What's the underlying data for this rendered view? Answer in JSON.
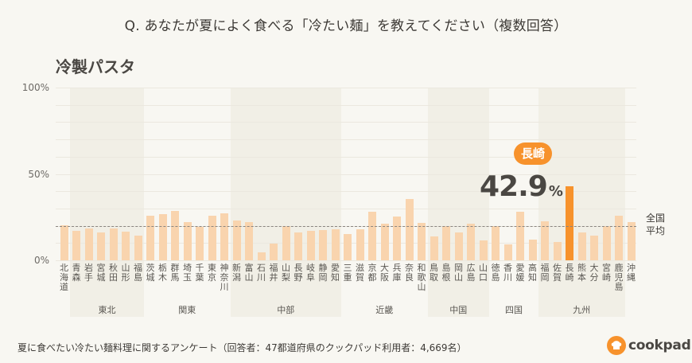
{
  "header": {
    "question": "Q. あなたが夏によく食べる「冷たい麺」を教えてください（複数回答）",
    "subtitle": "冷製パスタ"
  },
  "callout": {
    "prefecture": "長崎",
    "value": "42.9",
    "unit": "%"
  },
  "average": {
    "label_line1": "全国",
    "label_line2": "平均",
    "value": 20
  },
  "footer": {
    "note": "夏に食べたい冷たい麺料理に関するアンケート（回答者：47都道府県のクックパッド利用者：4,669名）",
    "logo_text": "cookpad",
    "logo_icon": "chef-hat-icon"
  },
  "colors": {
    "bar": "#f9d4ae",
    "highlight": "#f7922c",
    "background": "#f8f7f2",
    "region_band": "#f1efe6"
  },
  "regions": [
    {
      "name": "東北",
      "start": 1,
      "end": 6,
      "shaded": true
    },
    {
      "name": "関東",
      "start": 7,
      "end": 13,
      "shaded": false
    },
    {
      "name": "中部",
      "start": 14,
      "end": 22,
      "shaded": true
    },
    {
      "name": "近畿",
      "start": 23,
      "end": 29,
      "shaded": false
    },
    {
      "name": "中国",
      "start": 30,
      "end": 34,
      "shaded": true
    },
    {
      "name": "四国",
      "start": 35,
      "end": 38,
      "shaded": false
    },
    {
      "name": "九州",
      "start": 39,
      "end": 45,
      "shaded": true
    }
  ],
  "chart_data": {
    "type": "bar",
    "title": "冷製パスタ",
    "xlabel": "",
    "ylabel": "",
    "ylim": [
      0,
      100
    ],
    "yticks": [
      "0%",
      "50%",
      "100%"
    ],
    "grid": true,
    "reference_line": {
      "label": "全国平均",
      "value": 20
    },
    "highlight": {
      "category": "長崎",
      "value": 42.9
    },
    "categories": [
      "北海道",
      "青森",
      "岩手",
      "宮城",
      "秋田",
      "山形",
      "福島",
      "茨城",
      "栃木",
      "群馬",
      "埼玉",
      "千葉",
      "東京",
      "神奈川",
      "新潟",
      "富山",
      "石川",
      "福井",
      "山梨",
      "長野",
      "岐阜",
      "静岡",
      "愛知",
      "三重",
      "滋賀",
      "京都",
      "大阪",
      "兵庫",
      "奈良",
      "和歌山",
      "鳥取",
      "島根",
      "岡山",
      "広島",
      "山口",
      "徳島",
      "香川",
      "愛媛",
      "高知",
      "福岡",
      "佐賀",
      "長崎",
      "熊本",
      "大分",
      "宮崎",
      "鹿児島",
      "沖縄"
    ],
    "values": [
      20.5,
      17.0,
      18.3,
      15.9,
      18.3,
      16.5,
      14.4,
      26.0,
      26.7,
      28.7,
      22.0,
      19.3,
      26.0,
      27.2,
      23.0,
      22.3,
      4.6,
      9.8,
      19.6,
      15.9,
      17.0,
      17.4,
      18.0,
      15.1,
      18.2,
      28.3,
      21.2,
      25.2,
      35.3,
      21.6,
      13.9,
      20.0,
      16.3,
      21.2,
      11.5,
      20.0,
      9.0,
      28.3,
      11.8,
      22.6,
      10.7,
      42.9,
      15.9,
      14.1,
      19.9,
      26.0,
      22.0
    ]
  }
}
